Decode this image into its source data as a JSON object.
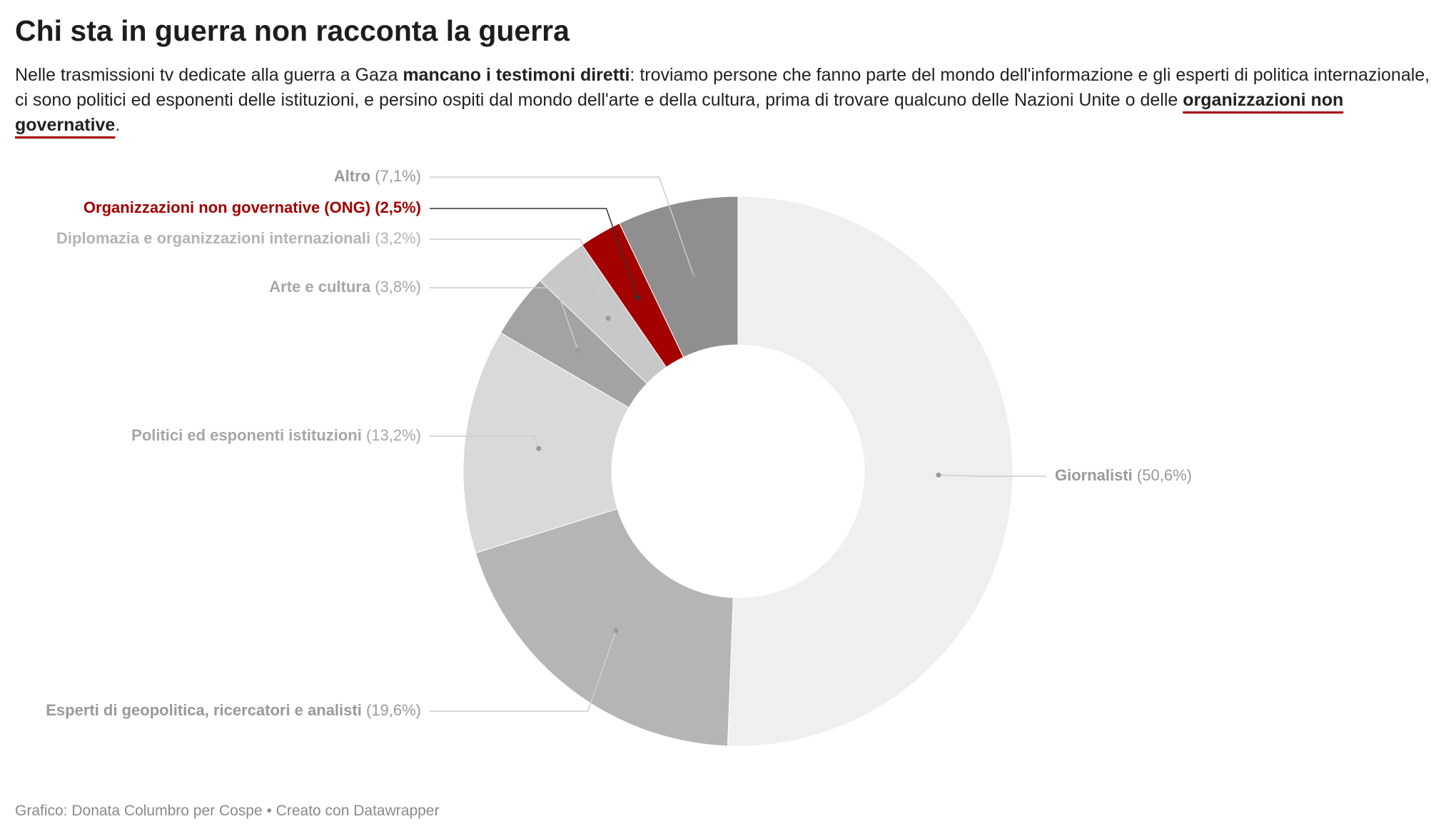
{
  "title": "Chi sta in guerra non racconta la guerra",
  "subtitle": [
    "Nelle trasmissioni tv dedicate alla guerra a Gaza ",
    "mancano i testimoni diretti",
    ": troviamo persone che fanno parte del mondo dell'informazione e gli esperti di politica internazionale, ci sono politici ed esponenti delle istituzioni, e persino ospiti dal mondo dell'arte e della cultura, prima di trovare qualcuno delle Nazioni Unite o delle ",
    "organizzazioni non governative",
    "."
  ],
  "footer": "Grafico: Donata Columbro per Cospe • Creato con Datawrapper",
  "chart_data": {
    "type": "donut",
    "categories": [
      "Giornalisti",
      "Esperti di geopolitica, ricercatori e analisti",
      "Politici ed esponenti istituzioni",
      "Arte e cultura",
      "Diplomazia e organizzazioni internazionali",
      "Organizzazioni non governative (ONG)",
      "Altro"
    ],
    "values": [
      50.6,
      19.6,
      13.2,
      3.8,
      3.2,
      2.5,
      7.1
    ],
    "value_labels": [
      "(50,6%)",
      "(19,6%)",
      "(13,2%)",
      "(3,8%)",
      "(3,2%)",
      "(2,5%)",
      "(7,1%)"
    ],
    "colors": [
      "#efefef",
      "#b5b5b5",
      "#d9d9d9",
      "#a3a3a3",
      "#c8c8c8",
      "#a30000",
      "#8f8f8f"
    ],
    "label_colors": [
      "#999999",
      "#999999",
      "#a6a6a6",
      "#a6a6a6",
      "#b3b3b3",
      "#a30000",
      "#999999"
    ]
  }
}
